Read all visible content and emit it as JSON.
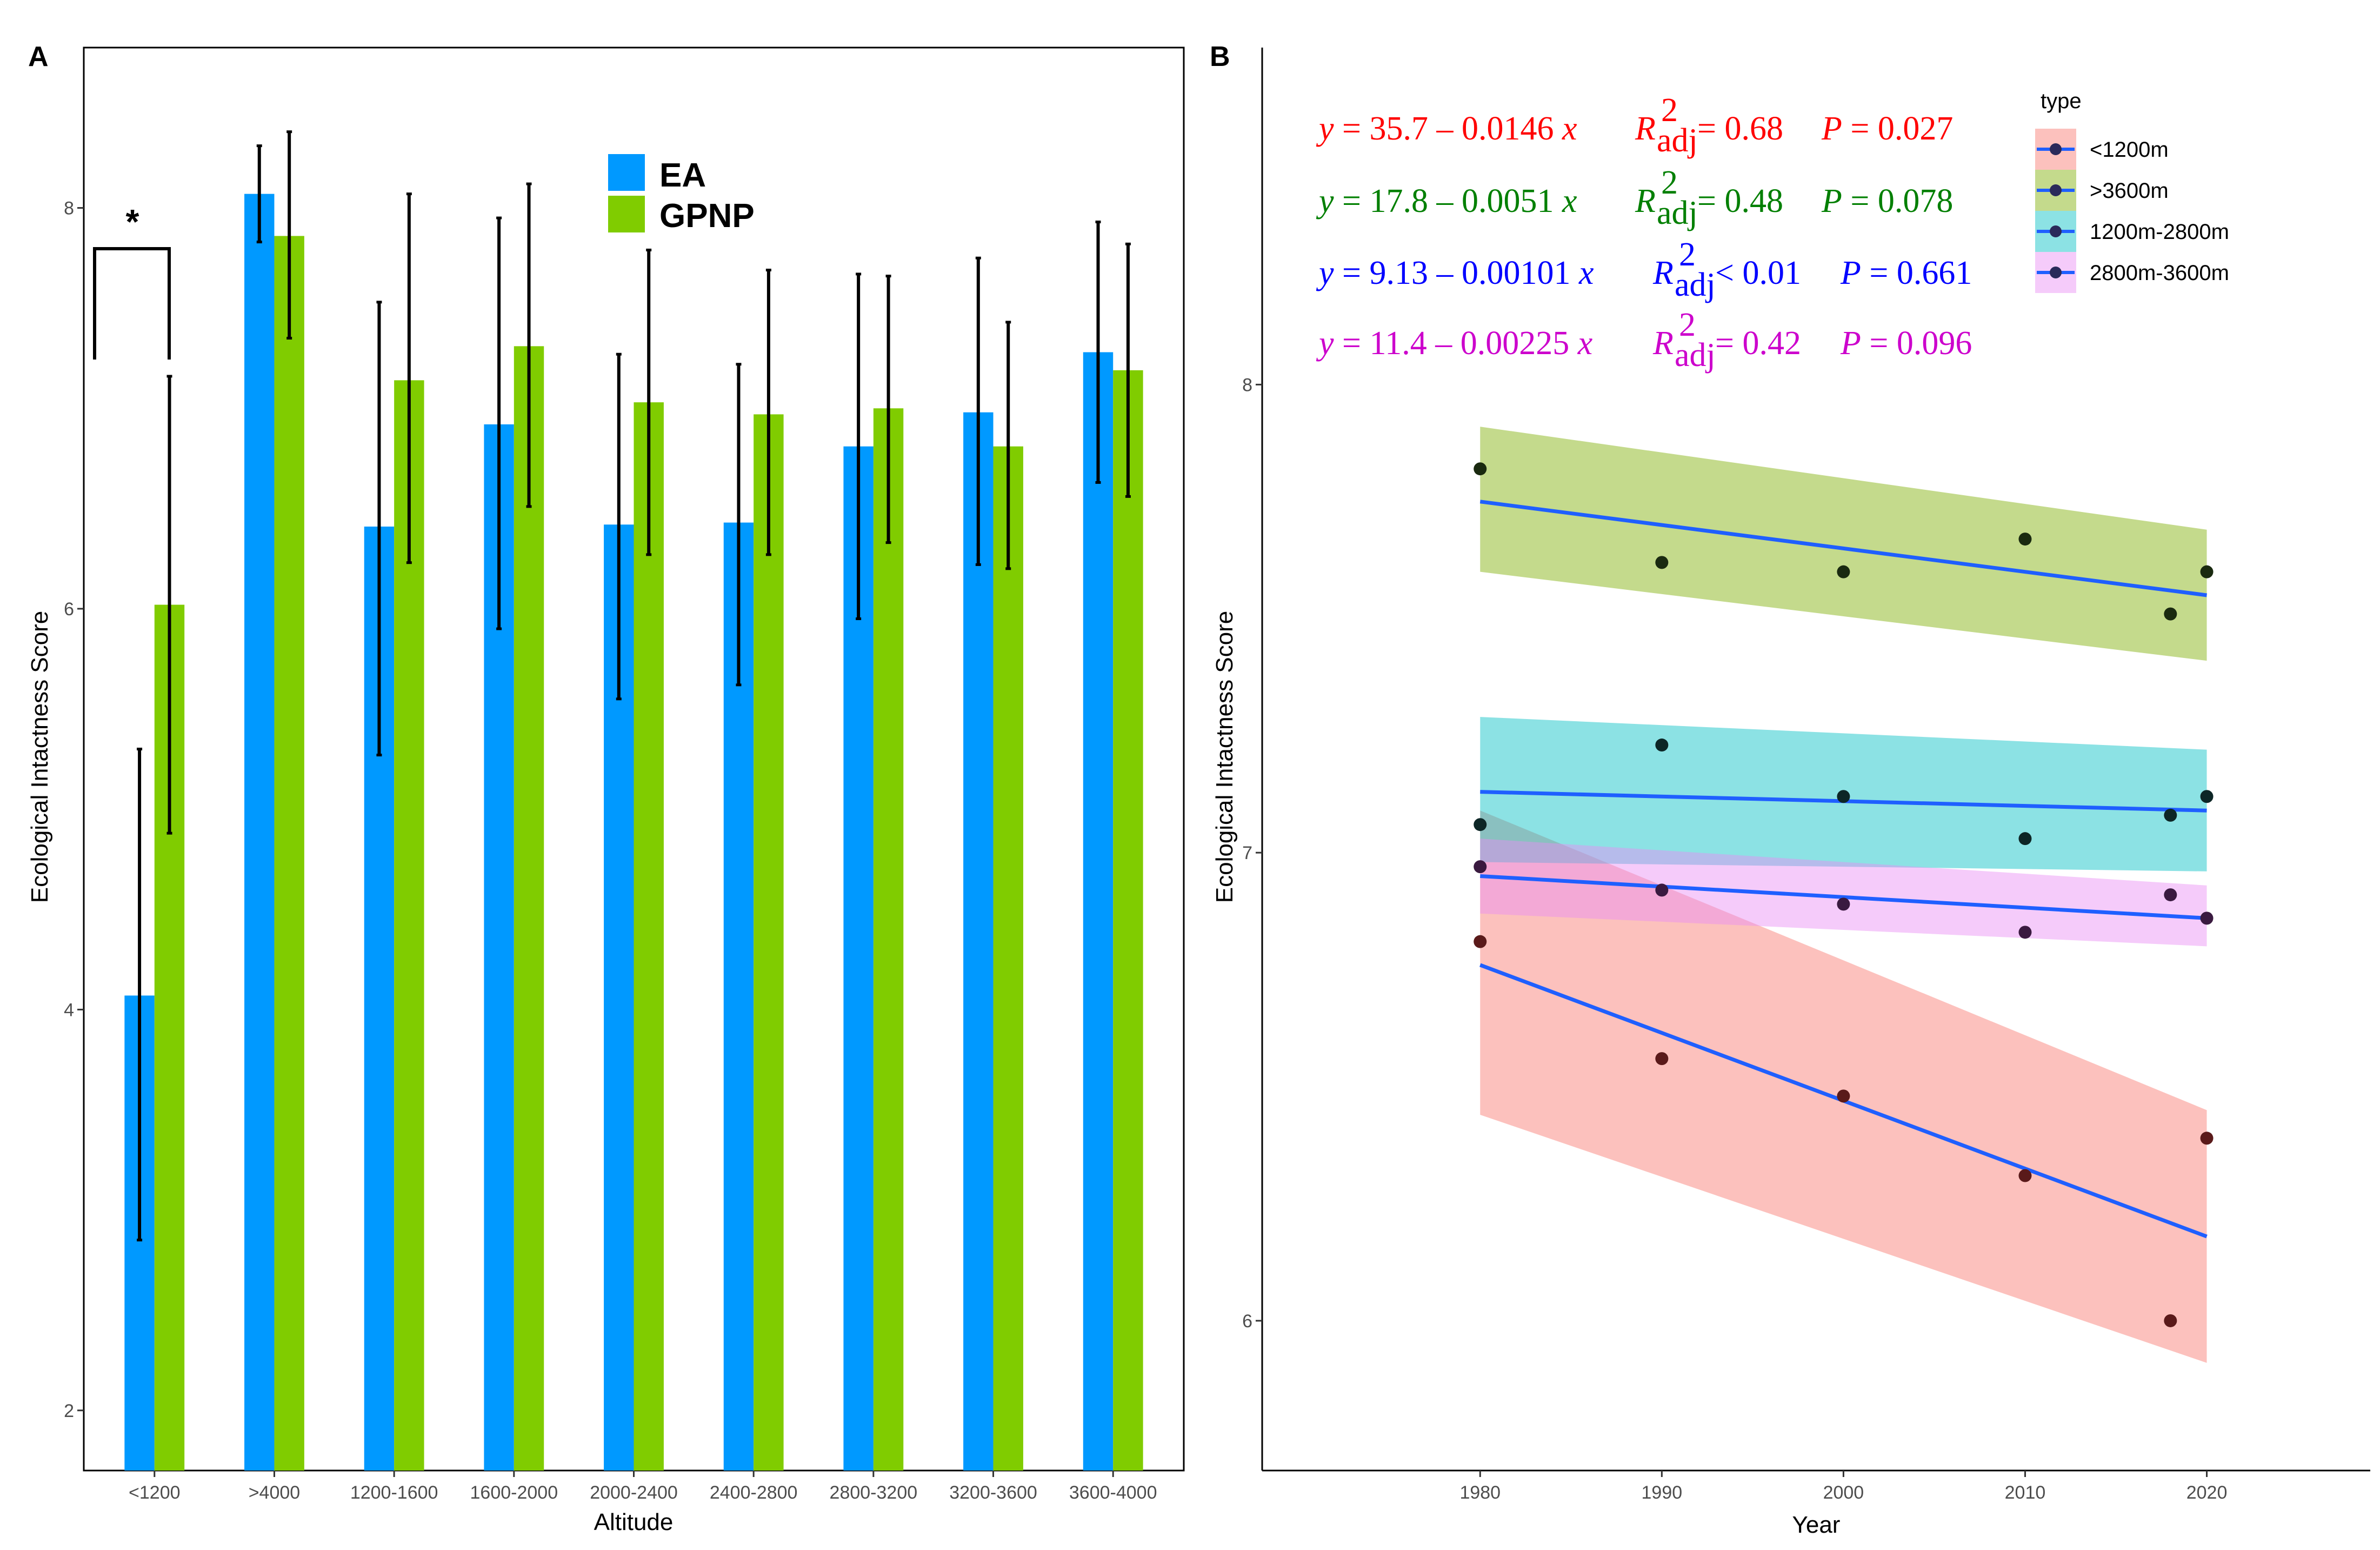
{
  "chart_data": [
    {
      "panel": "A",
      "type": "bar",
      "title": "",
      "xlabel": "Altitude",
      "ylabel": "Ecological Intactness Score",
      "ylim": [
        1.7,
        8.8
      ],
      "yticks": [
        2,
        4,
        6,
        8
      ],
      "categories": [
        "<1200",
        ">4000",
        "1200-1600",
        "1600-2000",
        "2000-2400",
        "2400-2800",
        "2800-3200",
        "3200-3600",
        "3600-4000"
      ],
      "series": [
        {
          "name": "EA",
          "color": "#0099ff",
          "values": [
            4.07,
            8.07,
            6.41,
            6.92,
            6.42,
            6.43,
            6.81,
            6.98,
            7.28
          ],
          "err_low": [
            2.85,
            7.83,
            5.27,
            5.9,
            5.55,
            5.62,
            5.95,
            6.22,
            6.63
          ],
          "err_high": [
            5.3,
            8.31,
            7.53,
            7.95,
            7.27,
            7.22,
            7.67,
            7.75,
            7.93
          ]
        },
        {
          "name": "GPNP",
          "color": "#80cc00",
          "values": [
            6.02,
            7.86,
            7.14,
            7.31,
            7.03,
            6.97,
            7.0,
            6.81,
            7.19
          ],
          "err_low": [
            4.88,
            7.35,
            6.23,
            6.51,
            6.27,
            6.27,
            6.33,
            6.2,
            6.56
          ],
          "err_high": [
            7.16,
            8.38,
            8.07,
            8.12,
            7.79,
            7.69,
            7.66,
            7.43,
            7.82
          ]
        }
      ],
      "annotation": "*",
      "legend_position": "top-center"
    },
    {
      "panel": "B",
      "type": "scatter",
      "title": "",
      "xlabel": "Year",
      "ylabel": "Ecological Intactness Score",
      "xlim": [
        1968,
        2029
      ],
      "ylim": [
        5.68,
        8.72
      ],
      "xticks": [
        1980,
        1990,
        2000,
        2010,
        2020
      ],
      "yticks": [
        6,
        7,
        8
      ],
      "legend_title": "type",
      "legend_position": "top-right",
      "series": [
        {
          "name": "<1200m",
          "fill": "#f8766d",
          "line": "#1f5fff",
          "x": [
            1980,
            1990,
            2000,
            2010,
            2018,
            2020
          ],
          "y": [
            6.81,
            6.56,
            6.48,
            6.31,
            6.0,
            6.39
          ],
          "fit_start": 6.76,
          "fit_end": 6.18,
          "band_start": [
            6.44,
            7.09
          ],
          "band_end": [
            5.91,
            6.45
          ],
          "point_color": "#5a1a1a",
          "equation": "y = 35.7 – 0.0146 x   R2adj = 0.68   P = 0.027",
          "eq_color": "#ff0000"
        },
        {
          "name": ">3600m",
          "fill": "#7cae00",
          "line": "#1f5fff",
          "x": [
            1980,
            1990,
            2000,
            2010,
            2018,
            2020
          ],
          "y": [
            7.82,
            7.62,
            7.6,
            7.67,
            7.51,
            7.6
          ],
          "fit_start": 7.75,
          "fit_end": 7.55,
          "band_start": [
            7.6,
            7.91
          ],
          "band_end": [
            7.41,
            7.69
          ],
          "point_color": "#1a2a10",
          "equation": "y = 17.8 – 0.0051 x   R2adj = 0.48   P = 0.078",
          "eq_color": "#007f00"
        },
        {
          "name": "1200m-2800m",
          "fill": "#00bfc4",
          "line": "#1f5fff",
          "x": [
            1980,
            1990,
            2000,
            2010,
            2018,
            2020
          ],
          "y": [
            7.06,
            7.23,
            7.12,
            7.03,
            7.08,
            7.12
          ],
          "fit_start": 7.13,
          "fit_end": 7.09,
          "band_start": [
            6.98,
            7.29
          ],
          "band_end": [
            6.96,
            7.22
          ],
          "point_color": "#0d2626",
          "equation": "y = 9.13 – 0.00101 x   R2adj < 0.01   P = 0.661",
          "eq_color": "#0000ff"
        },
        {
          "name": "2800m-3600m",
          "fill": "#e98cf5",
          "line": "#1f5fff",
          "x": [
            1980,
            1990,
            2000,
            2010,
            2018,
            2020
          ],
          "y": [
            6.97,
            6.92,
            6.89,
            6.83,
            6.91,
            6.86
          ],
          "fit_start": 6.95,
          "fit_end": 6.86,
          "band_start": [
            6.87,
            7.03
          ],
          "band_end": [
            6.8,
            6.93
          ],
          "point_color": "#3a1a40",
          "equation": "y = 11.4 – 0.00225 x   R2adj = 0.42   P = 0.096",
          "eq_color": "#cc00cc"
        }
      ]
    }
  ],
  "panels": {
    "a_label": "A",
    "b_label": "B"
  },
  "equations": [
    {
      "y_slope": "y = 35.7 – 0.0146 x",
      "r_sym": "R",
      "r_sup": "2",
      "r_sub": "adj",
      "r_rel": "= 0.68",
      "p": "P = 0.027"
    },
    {
      "y_slope": "y = 17.8 – 0.0051 x",
      "r_sym": "R",
      "r_sup": "2",
      "r_sub": "adj",
      "r_rel": "= 0.48",
      "p": "P = 0.078"
    },
    {
      "y_slope": "y = 9.13 – 0.00101 x",
      "r_sym": "R",
      "r_sup": "2",
      "r_sub": "adj",
      "r_rel": "< 0.01",
      "p": "P = 0.661"
    },
    {
      "y_slope": "y = 11.4 – 0.00225 x",
      "r_sym": "R",
      "r_sup": "2",
      "r_sub": "adj",
      "r_rel": "= 0.42",
      "p": "P = 0.096"
    }
  ]
}
